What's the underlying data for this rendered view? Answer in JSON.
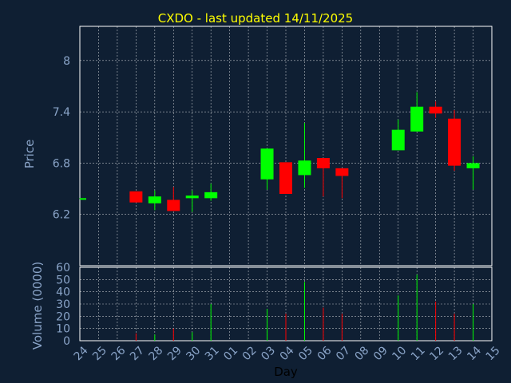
{
  "chart_data": {
    "type": "candlestick",
    "title": "CXDO - last updated 14/11/2025",
    "xlabel": "Day",
    "price_panel": {
      "ylabel": "Price",
      "yticks": [
        6.2,
        6.8,
        7.4,
        8
      ],
      "ytick_labels": [
        "6.2",
        "6.8",
        "7.4",
        "8"
      ],
      "ylim": [
        5.6,
        8.4
      ],
      "grid": true
    },
    "volume_panel": {
      "ylabel": "Volume (0000)",
      "yticks": [
        0,
        10,
        20,
        30,
        40,
        50,
        60
      ],
      "ytick_labels": [
        "0",
        "10",
        "20",
        "30",
        "40",
        "50",
        "60"
      ],
      "ylim": [
        0,
        60
      ],
      "grid": true
    },
    "x_labels": [
      "24",
      "25",
      "26",
      "27",
      "28",
      "29",
      "30",
      "31",
      "01",
      "02",
      "03",
      "04",
      "05",
      "06",
      "07",
      "08",
      "09",
      "10",
      "11",
      "12",
      "13",
      "14",
      "15"
    ],
    "candles": [
      {
        "day": "24",
        "open": 6.38,
        "close": 6.39,
        "high": 6.39,
        "low": 6.38,
        "volume": 0
      },
      {
        "day": "27",
        "open": 6.47,
        "close": 6.34,
        "high": 6.47,
        "low": 6.34,
        "volume": 6
      },
      {
        "day": "28",
        "open": 6.33,
        "close": 6.41,
        "high": 6.48,
        "low": 6.25,
        "volume": 5
      },
      {
        "day": "29",
        "open": 6.37,
        "close": 6.24,
        "high": 6.52,
        "low": 6.24,
        "volume": 10
      },
      {
        "day": "30",
        "open": 6.39,
        "close": 6.42,
        "high": 6.48,
        "low": 6.23,
        "volume": 7
      },
      {
        "day": "31",
        "open": 6.39,
        "close": 6.46,
        "high": 6.56,
        "low": 6.36,
        "volume": 30
      },
      {
        "day": "03",
        "open": 6.61,
        "close": 6.97,
        "high": 6.97,
        "low": 6.49,
        "volume": 26
      },
      {
        "day": "04",
        "open": 6.81,
        "close": 6.44,
        "high": 6.81,
        "low": 6.44,
        "volume": 22
      },
      {
        "day": "05",
        "open": 6.66,
        "close": 6.83,
        "high": 7.27,
        "low": 6.51,
        "volume": 48
      },
      {
        "day": "06",
        "open": 6.86,
        "close": 6.74,
        "high": 6.86,
        "low": 6.41,
        "volume": 27
      },
      {
        "day": "07",
        "open": 6.74,
        "close": 6.65,
        "high": 6.74,
        "low": 6.39,
        "volume": 22
      },
      {
        "day": "10",
        "open": 6.95,
        "close": 7.19,
        "high": 7.31,
        "low": 6.95,
        "volume": 37
      },
      {
        "day": "11",
        "open": 7.17,
        "close": 7.46,
        "high": 7.63,
        "low": 7.17,
        "volume": 54
      },
      {
        "day": "12",
        "open": 7.46,
        "close": 7.38,
        "high": 7.52,
        "low": 7.33,
        "volume": 32
      },
      {
        "day": "13",
        "open": 7.32,
        "close": 6.77,
        "high": 7.42,
        "low": 6.71,
        "volume": 22
      },
      {
        "day": "14",
        "open": 6.74,
        "close": 6.8,
        "high": 6.88,
        "low": 6.49,
        "volume": 30
      }
    ],
    "colors": {
      "background": "#0f1f33",
      "up": "#00ff00",
      "down": "#ff0000",
      "title": "#ffff00",
      "text": "#8aa4c8",
      "axis": "#ffffff",
      "grid": "#ffffff"
    }
  }
}
